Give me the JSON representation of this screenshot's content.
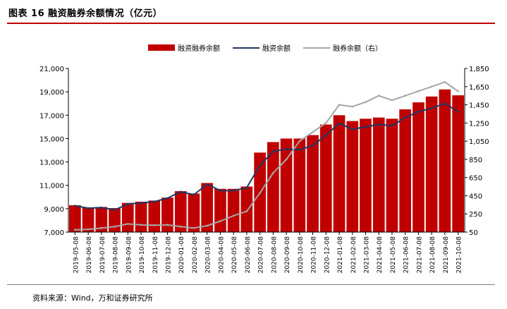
{
  "figure_title": "图表 16  融资融券余额情况（亿元）",
  "source": "资料来源：Wind，万和证券研究所",
  "colors": {
    "bars": "#c00000",
    "line_finance": "#1f3864",
    "line_securities": "#a6a6a6",
    "title_rule": "#c00000"
  },
  "chart_data": {
    "type": "bar",
    "title": "",
    "legend": [
      "融资融券余额",
      "融资余额",
      "融券余额（右）"
    ],
    "legend_position": "top",
    "grid": false,
    "x_tick_labels": [
      "2019-05-08",
      "2019-06-08",
      "2019-07-08",
      "2019-08-08",
      "2019-09-08",
      "2019-10-08",
      "2019-11-08",
      "2019-12-08",
      "2020-01-08",
      "2020-02-08",
      "2020-03-08",
      "2020-04-08",
      "2020-05-08",
      "2020-06-08",
      "2020-07-08",
      "2020-08-08",
      "2020-09-08",
      "2020-10-08",
      "2020-11-08",
      "2020-12-08",
      "2021-01-08",
      "2021-02-08",
      "2021-03-08",
      "2021-04-08",
      "2021-05-08",
      "2021-06-08",
      "2021-07-08",
      "2021-08-08",
      "2021-09-08",
      "2021-10-08"
    ],
    "y_left": {
      "min": 7000,
      "max": 21000,
      "ticks": [
        "7,000",
        "9,000",
        "11,000",
        "13,000",
        "15,000",
        "17,000",
        "19,000",
        "21,000"
      ]
    },
    "y_right": {
      "min": 50,
      "max": 1850,
      "ticks": [
        "50",
        "250",
        "450",
        "650",
        "850",
        "1,050",
        "1,250",
        "1,450",
        "1,650",
        "1,850"
      ]
    },
    "series": [
      {
        "name": "融资融券余额",
        "type": "bar",
        "axis": "left",
        "values": [
          9300,
          9100,
          9150,
          9050,
          9500,
          9600,
          9700,
          9950,
          10500,
          10300,
          11200,
          10700,
          10700,
          10900,
          13800,
          14700,
          15000,
          15000,
          15300,
          16200,
          17000,
          16500,
          16700,
          16800,
          16700,
          17500,
          18100,
          18600,
          19200,
          18700
        ]
      },
      {
        "name": "融资余额",
        "type": "line",
        "axis": "left",
        "values": [
          9250,
          9050,
          9100,
          8900,
          9400,
          9500,
          9600,
          9900,
          10450,
          10200,
          11100,
          10550,
          10550,
          10800,
          12700,
          13900,
          14100,
          14050,
          14400,
          15300,
          16300,
          15800,
          16000,
          16200,
          16100,
          16800,
          17300,
          17600,
          18000,
          17300
        ]
      },
      {
        "name": "融券余额（右）",
        "type": "line",
        "axis": "right",
        "values": [
          75,
          80,
          95,
          110,
          140,
          130,
          125,
          130,
          110,
          95,
          120,
          170,
          230,
          280,
          480,
          700,
          850,
          1050,
          1150,
          1250,
          1450,
          1430,
          1480,
          1550,
          1500,
          1550,
          1600,
          1650,
          1700,
          1600
        ]
      }
    ]
  }
}
